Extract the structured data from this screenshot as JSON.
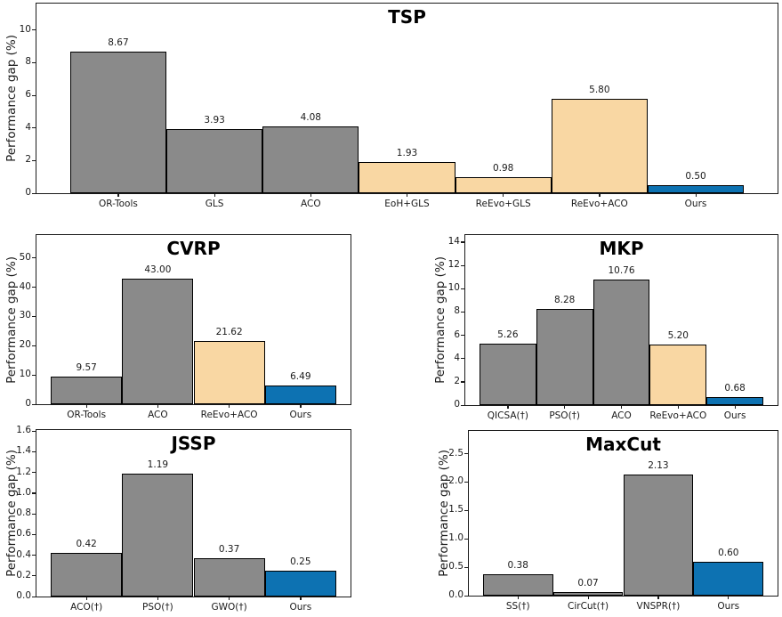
{
  "figure": {
    "ylabel": "Performance gap (%)"
  },
  "colors": {
    "gray": "#8a8a8a",
    "peach": "#f9d7a3",
    "blue": "#0d72b2",
    "edge": "#000000"
  },
  "chart_data": [
    {
      "type": "bar",
      "title": "TSP",
      "ylabel": "Performance gap (%)",
      "categories": [
        "OR-Tools",
        "GLS",
        "ACO",
        "EoH+GLS",
        "ReEvo+GLS",
        "ReEvo+ACO",
        "Ours"
      ],
      "values": [
        8.67,
        3.93,
        4.08,
        1.93,
        0.98,
        5.8,
        0.5
      ],
      "value_labels": [
        "8.67",
        "3.93",
        "4.08",
        "1.93",
        "0.98",
        "5.80",
        "0.50"
      ],
      "bar_colors": [
        "gray",
        "gray",
        "gray",
        "peach",
        "peach",
        "peach",
        "blue"
      ],
      "yticks": [
        0,
        2,
        4,
        6,
        8,
        10
      ],
      "ytick_labels": [
        "0",
        "2",
        "4",
        "6",
        "8",
        "10"
      ],
      "ylim": [
        0,
        11.62
      ],
      "grid": false
    },
    {
      "type": "bar",
      "title": "CVRP",
      "ylabel": "Performance gap (%)",
      "categories": [
        "OR-Tools",
        "ACO",
        "ReEvo+ACO",
        "Ours"
      ],
      "values": [
        9.57,
        43.0,
        21.62,
        6.49
      ],
      "value_labels": [
        "9.57",
        "43.00",
        "21.62",
        "6.49"
      ],
      "bar_colors": [
        "gray",
        "gray",
        "peach",
        "blue"
      ],
      "yticks": [
        0,
        10,
        20,
        30,
        40,
        50
      ],
      "ytick_labels": [
        "0",
        "10",
        "20",
        "30",
        "40",
        "50"
      ],
      "ylim": [
        0,
        57.8
      ],
      "grid": false
    },
    {
      "type": "bar",
      "title": "MKP",
      "ylabel": "Performance gap (%)",
      "categories": [
        "QICSA(†)",
        "PSO(†)",
        "ACO",
        "ReEvo+ACO",
        "Ours"
      ],
      "values": [
        5.26,
        8.28,
        10.76,
        5.2,
        0.68
      ],
      "value_labels": [
        "5.26",
        "8.28",
        "10.76",
        "5.20",
        "0.68"
      ],
      "bar_colors": [
        "gray",
        "gray",
        "gray",
        "peach",
        "blue"
      ],
      "yticks": [
        0,
        2,
        4,
        6,
        8,
        10,
        12,
        14
      ],
      "ytick_labels": [
        "0",
        "2",
        "4",
        "6",
        "8",
        "10",
        "12",
        "14"
      ],
      "ylim": [
        0,
        14.6
      ],
      "grid": false
    },
    {
      "type": "bar",
      "title": "JSSP",
      "ylabel": "Performance gap (%)",
      "categories": [
        "ACO(†)",
        "PSO(†)",
        "GWO(†)",
        "Ours"
      ],
      "values": [
        0.42,
        1.19,
        0.37,
        0.25
      ],
      "value_labels": [
        "0.42",
        "1.19",
        "0.37",
        "0.25"
      ],
      "bar_colors": [
        "gray",
        "gray",
        "gray",
        "blue"
      ],
      "yticks": [
        0.0,
        0.2,
        0.4,
        0.6,
        0.8,
        1.0,
        1.2,
        1.4,
        1.6
      ],
      "ytick_labels": [
        "0.0",
        "0.2",
        "0.4",
        "0.6",
        "0.8",
        "1.0",
        "1.2",
        "1.4",
        "1.6"
      ],
      "ylim": [
        0,
        1.61
      ],
      "grid": false
    },
    {
      "type": "bar",
      "title": "MaxCut",
      "ylabel": "Performance gap (%)",
      "categories": [
        "SS(†)",
        "CirCut(†)",
        "VNSPR(†)",
        "Ours"
      ],
      "values": [
        0.38,
        0.07,
        2.13,
        0.6
      ],
      "value_labels": [
        "0.38",
        "0.07",
        "2.13",
        "0.60"
      ],
      "bar_colors": [
        "gray",
        "gray",
        "gray",
        "blue"
      ],
      "yticks": [
        0.0,
        0.5,
        1.0,
        1.5,
        2.0,
        2.5
      ],
      "ytick_labels": [
        "0.0",
        "0.5",
        "1.0",
        "1.5",
        "2.0",
        "2.5"
      ],
      "ylim": [
        0,
        2.9
      ],
      "grid": false
    }
  ]
}
